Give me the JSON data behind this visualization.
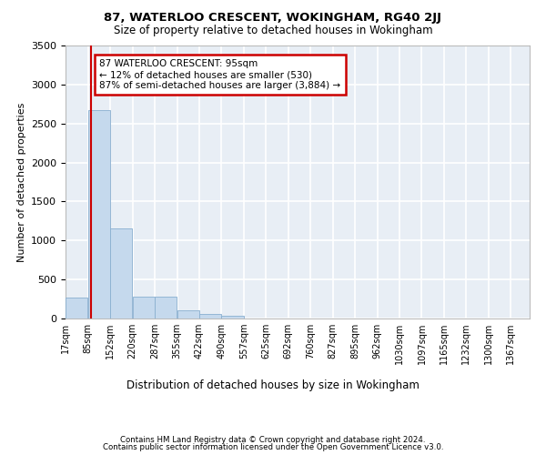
{
  "title_line1": "87, WATERLOO CRESCENT, WOKINGHAM, RG40 2JJ",
  "title_line2": "Size of property relative to detached houses in Wokingham",
  "xlabel": "Distribution of detached houses by size in Wokingham",
  "ylabel": "Number of detached properties",
  "bar_color": "#c5d9ed",
  "bar_edge_color": "#89afd0",
  "bg_color": "#e8eef5",
  "grid_color": "#ffffff",
  "annotation_box_text": "87 WATERLOO CRESCENT: 95sqm\n← 12% of detached houses are smaller (530)\n87% of semi-detached houses are larger (3,884) →",
  "annotation_box_color": "#cc0000",
  "vline_color": "#cc0000",
  "vline_x": 95,
  "categories": [
    "17sqm",
    "85sqm",
    "152sqm",
    "220sqm",
    "287sqm",
    "355sqm",
    "422sqm",
    "490sqm",
    "557sqm",
    "625sqm",
    "692sqm",
    "760sqm",
    "827sqm",
    "895sqm",
    "962sqm",
    "1030sqm",
    "1097sqm",
    "1165sqm",
    "1232sqm",
    "1300sqm",
    "1367sqm"
  ],
  "bin_edges": [
    17,
    85,
    152,
    220,
    287,
    355,
    422,
    490,
    557,
    625,
    692,
    760,
    827,
    895,
    962,
    1030,
    1097,
    1165,
    1232,
    1300,
    1367
  ],
  "bin_width": 67,
  "values": [
    270,
    2670,
    1150,
    285,
    285,
    100,
    55,
    35,
    0,
    0,
    0,
    0,
    0,
    0,
    0,
    0,
    0,
    0,
    0,
    0
  ],
  "ylim": [
    0,
    3500
  ],
  "yticks": [
    0,
    500,
    1000,
    1500,
    2000,
    2500,
    3000,
    3500
  ],
  "footnote1": "Contains HM Land Registry data © Crown copyright and database right 2024.",
  "footnote2": "Contains public sector information licensed under the Open Government Licence v3.0."
}
